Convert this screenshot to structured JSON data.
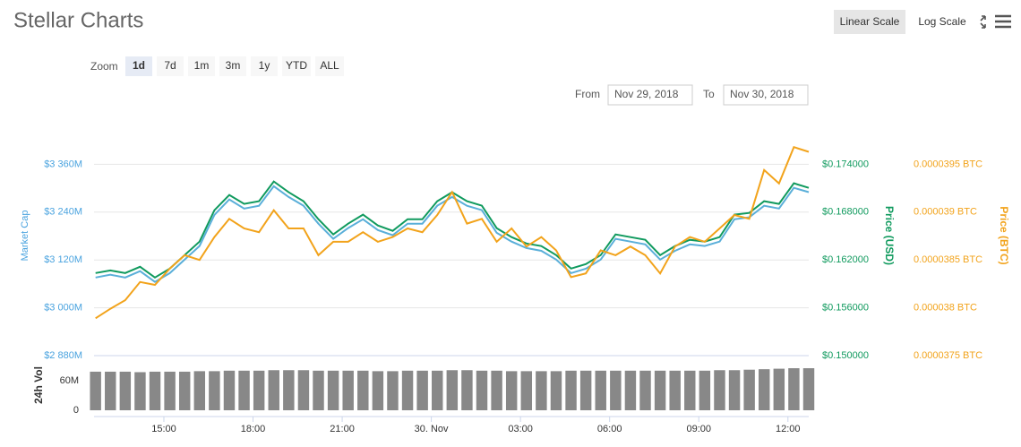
{
  "chart_data": {
    "type": "line",
    "title": "Stellar Charts",
    "scale_options": [
      "Linear Scale",
      "Log Scale"
    ],
    "zoom_label": "Zoom",
    "zoom_options": [
      "1d",
      "7d",
      "1m",
      "3m",
      "1y",
      "YTD",
      "ALL"
    ],
    "from_label": "From",
    "from": "Nov 29, 2018",
    "to_label": "To",
    "to": "Nov 30, 2018",
    "ylabel": "Market Cap",
    "y2label": "Price (USD)",
    "y3label": "Price (BTC)",
    "vol_label": "24h Vol",
    "x": [
      12.7,
      13.2,
      13.7,
      14.2,
      14.7,
      15.2,
      15.7,
      16.2,
      16.7,
      17.2,
      17.7,
      18.2,
      18.7,
      19.2,
      19.7,
      20.2,
      20.7,
      21.2,
      21.7,
      22.2,
      22.7,
      23.2,
      23.7,
      24.2,
      24.7,
      25.2,
      25.7,
      26.2,
      26.7,
      27.2,
      27.7,
      28.2,
      28.7,
      29.2,
      29.7,
      30.2,
      30.7,
      31.2,
      31.7,
      32.2,
      32.7,
      33.2,
      33.7,
      34.2,
      34.7,
      35.2,
      35.7,
      36.2,
      36.7
    ],
    "xlim": [
      12.65,
      36.7
    ],
    "xticks": [
      {
        "value": 15,
        "label": "15:00"
      },
      {
        "value": 18,
        "label": "18:00"
      },
      {
        "value": 21,
        "label": "21:00"
      },
      {
        "value": 24,
        "label": "30. Nov"
      },
      {
        "value": 27,
        "label": "03:00"
      },
      {
        "value": 30,
        "label": "06:00"
      },
      {
        "value": 33,
        "label": "09:00"
      },
      {
        "value": 36,
        "label": "12:00"
      }
    ],
    "ylim": [
      2880,
      3480
    ],
    "yticks": [
      {
        "value": 2880,
        "label": "$2 880M"
      },
      {
        "value": 3000,
        "label": "$3 000M"
      },
      {
        "value": 3120,
        "label": "$3 120M"
      },
      {
        "value": 3240,
        "label": "$3 240M"
      },
      {
        "value": 3360,
        "label": "$3 360M"
      }
    ],
    "y2lim": [
      0.15,
      0.18
    ],
    "y2ticks": [
      {
        "value": 0.15,
        "label": "$0.150000"
      },
      {
        "value": 0.156,
        "label": "$0.156000"
      },
      {
        "value": 0.162,
        "label": "$0.162000"
      },
      {
        "value": 0.168,
        "label": "$0.168000"
      },
      {
        "value": 0.174,
        "label": "$0.174000"
      }
    ],
    "y3lim": [
      3.75e-05,
      4e-05
    ],
    "y3ticks": [
      {
        "value": 3.75e-05,
        "label": "0.0000375 BTC"
      },
      {
        "value": 3.8e-05,
        "label": "0.000038 BTC"
      },
      {
        "value": 3.85e-05,
        "label": "0.0000385 BTC"
      },
      {
        "value": 3.9e-05,
        "label": "0.000039 BTC"
      },
      {
        "value": 3.95e-05,
        "label": "0.0000395 BTC"
      }
    ],
    "vol_ylim": [
      0,
      105
    ],
    "vol_yticks": [
      0,
      {
        "value": 60,
        "label": "60M"
      }
    ],
    "grid": true,
    "series": [
      {
        "name": "Market Cap",
        "color": "#5aafd9",
        "axis": "y",
        "values": [
          3076,
          3083,
          3076,
          3092,
          3065,
          3087,
          3121,
          3155,
          3233,
          3272,
          3249,
          3256,
          3305,
          3278,
          3256,
          3211,
          3173,
          3200,
          3222,
          3195,
          3182,
          3211,
          3211,
          3256,
          3278,
          3256,
          3245,
          3188,
          3166,
          3150,
          3143,
          3121,
          3087,
          3098,
          3121,
          3173,
          3166,
          3159,
          3121,
          3143,
          3159,
          3155,
          3166,
          3222,
          3227,
          3256,
          3249,
          3301,
          3290
        ]
      },
      {
        "name": "Price (USD)",
        "color": "#109a5e",
        "axis": "y2",
        "values": [
          0.16036,
          0.16069,
          0.16036,
          0.16115,
          0.1598,
          0.16092,
          0.16261,
          0.1643,
          0.16824,
          0.17015,
          0.16903,
          0.16937,
          0.17184,
          0.17049,
          0.16937,
          0.16711,
          0.1652,
          0.16655,
          0.16768,
          0.16633,
          0.16565,
          0.16711,
          0.16711,
          0.16937,
          0.17049,
          0.16937,
          0.16881,
          0.16599,
          0.16486,
          0.16407,
          0.16374,
          0.16261,
          0.16092,
          0.16148,
          0.16261,
          0.1652,
          0.16486,
          0.16453,
          0.16261,
          0.16374,
          0.16453,
          0.1643,
          0.16486,
          0.16768,
          0.1679,
          0.16937,
          0.16903,
          0.17162,
          0.17105
        ]
      },
      {
        "name": "Price (BTC)",
        "color": "#f2a31b",
        "axis": "y3",
        "values": [
          3.789e-05,
          3.799e-05,
          3.808e-05,
          3.827e-05,
          3.824e-05,
          3.841e-05,
          3.855e-05,
          3.85e-05,
          3.874e-05,
          3.893e-05,
          3.883e-05,
          3.879e-05,
          3.902e-05,
          3.883e-05,
          3.883e-05,
          3.855e-05,
          3.869e-05,
          3.869e-05,
          3.879e-05,
          3.869e-05,
          3.874e-05,
          3.883e-05,
          3.879e-05,
          3.897e-05,
          3.921e-05,
          3.888e-05,
          3.893e-05,
          3.869e-05,
          3.883e-05,
          3.864e-05,
          3.874e-05,
          3.86e-05,
          3.832e-05,
          3.836e-05,
          3.86e-05,
          3.855e-05,
          3.864e-05,
          3.855e-05,
          3.836e-05,
          3.864e-05,
          3.874e-05,
          3.869e-05,
          3.883e-05,
          3.897e-05,
          3.893e-05,
          3.944e-05,
          3.93e-05,
          3.968e-05,
          3.963e-05
        ]
      }
    ],
    "volume": {
      "name": "24h Vol",
      "color": "#888888",
      "values": [
        78,
        78,
        78,
        77,
        78,
        78,
        78,
        79,
        79,
        80,
        80,
        80,
        81,
        81,
        81,
        80,
        80,
        80,
        80,
        79,
        79,
        80,
        80,
        80,
        81,
        81,
        80,
        80,
        79,
        79,
        79,
        79,
        80,
        80,
        80,
        80,
        80,
        80,
        80,
        80,
        80,
        80,
        81,
        81,
        82,
        83,
        84,
        85,
        85
      ]
    }
  }
}
